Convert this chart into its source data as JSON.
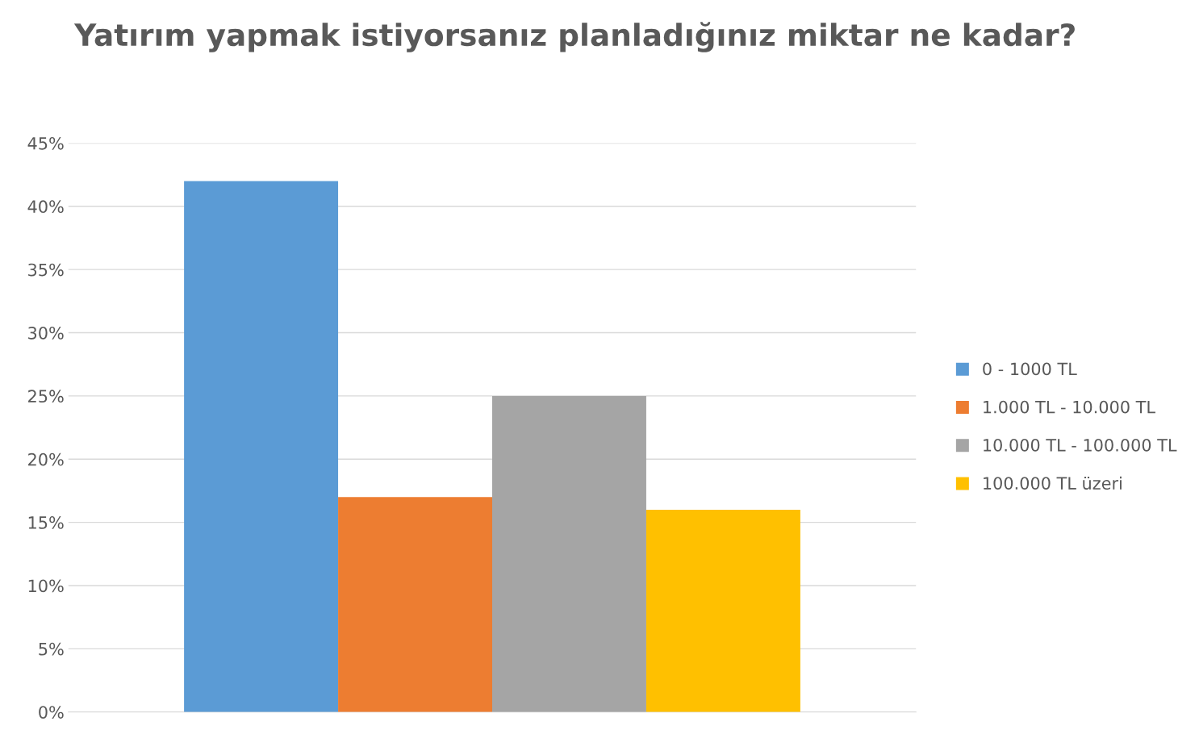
{
  "chart_data": {
    "type": "bar",
    "title": "Yatırım yapmak istiyorsanız planladığınız miktar ne kadar?",
    "categories": [
      null
    ],
    "series": [
      {
        "name": "0 - 1000 TL",
        "color": "#5b9bd5",
        "values": [
          42
        ]
      },
      {
        "name": "1.000 TL - 10.000 TL",
        "color": "#ed7d31",
        "values": [
          17
        ]
      },
      {
        "name": "10.000 TL - 100.000 TL",
        "color": "#a5a5a5",
        "values": [
          25
        ]
      },
      {
        "name": "100.000 TL üzeri",
        "color": "#ffc000",
        "values": [
          16
        ]
      }
    ],
    "ylim": [
      0,
      45
    ],
    "yticks": [
      {
        "value": 0,
        "label": "0%"
      },
      {
        "value": 5,
        "label": "5%"
      },
      {
        "value": 10,
        "label": "10%"
      },
      {
        "value": 15,
        "label": "15%"
      },
      {
        "value": 20,
        "label": "20%"
      },
      {
        "value": 25,
        "label": "25%"
      },
      {
        "value": 30,
        "label": "30%"
      },
      {
        "value": 35,
        "label": "35%"
      },
      {
        "value": 40,
        "label": "40%"
      },
      {
        "value": 45,
        "label": "45%"
      }
    ],
    "grid": "y",
    "legend": "right"
  }
}
